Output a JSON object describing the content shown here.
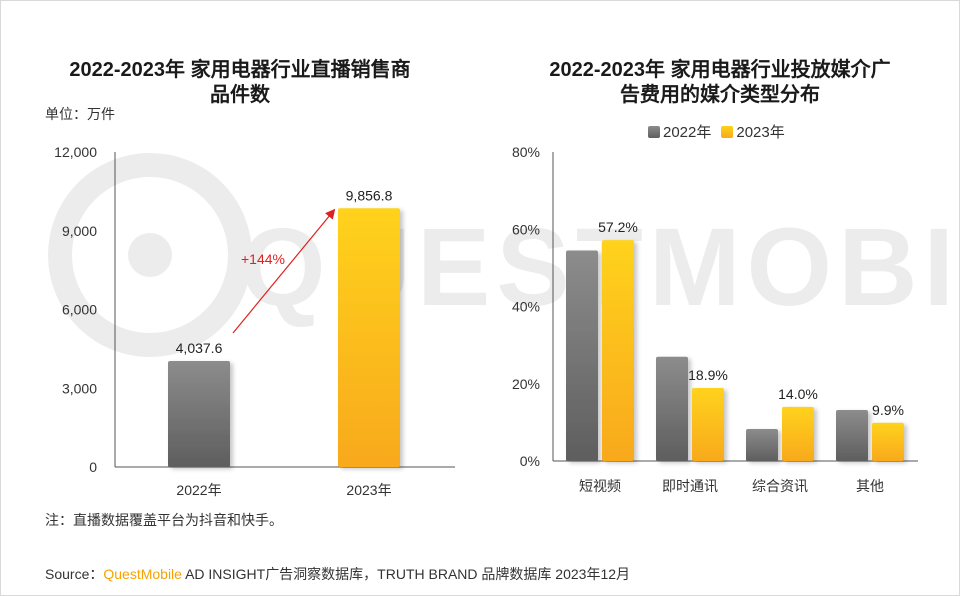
{
  "watermark": "QUESTMOBILE",
  "left_chart": {
    "title_line1": "2022-2023年 家用电器行业直播销售商",
    "title_line2": "品件数",
    "unit": "单位：万件",
    "note": "注：直播数据覆盖平台为抖音和快手。",
    "growth_label": "+144%"
  },
  "right_chart": {
    "title_line1": "2022-2023年 家用电器行业投放媒介广",
    "title_line2": "告费用的媒介类型分布"
  },
  "legend": {
    "series_2022": "2022年",
    "series_2023": "2023年"
  },
  "source": {
    "prefix": "Source：",
    "brand": "QuestMobile",
    "text": " AD INSIGHT广告洞察数据库，TRUTH BRAND 品牌数据库 2023年12月"
  },
  "colors": {
    "gray_top": "#8c8c8c",
    "gray_bottom": "#5e5e5e",
    "gold_top": "#ffd21a",
    "gold_bottom": "#f8a91c",
    "arrow": "#e0201e",
    "brand": "#f5a300"
  },
  "chart_data": [
    {
      "type": "bar",
      "title": "2022-2023年 家用电器行业直播销售商品件数",
      "ylabel": "单位：万件",
      "categories": [
        "2022年",
        "2023年"
      ],
      "values": [
        4037.6,
        9856.8
      ],
      "value_labels": [
        "4,037.6",
        "9,856.8"
      ],
      "ylim": [
        0,
        12000
      ],
      "yticks": [
        0,
        3000,
        6000,
        9000,
        12000
      ],
      "ytick_labels": [
        "0",
        "3,000",
        "6,000",
        "9,000",
        "12,000"
      ],
      "annotation": "+144%",
      "grid": false
    },
    {
      "type": "bar",
      "title": "2022-2023年 家用电器行业投放媒介广告费用的媒介类型分布",
      "categories": [
        "短视频",
        "即时通讯",
        "综合资讯",
        "其他"
      ],
      "series": [
        {
          "name": "2022年",
          "values": [
            54.5,
            27.0,
            8.3,
            13.2
          ],
          "labels": [
            "",
            "",
            "",
            ""
          ]
        },
        {
          "name": "2023年",
          "values": [
            57.2,
            18.9,
            14.0,
            9.9
          ],
          "labels": [
            "57.2%",
            "18.9%",
            "14.0%",
            "9.9%"
          ]
        }
      ],
      "ylim": [
        0,
        80
      ],
      "yticks": [
        0,
        20,
        40,
        60,
        80
      ],
      "ytick_labels": [
        "0%",
        "20%",
        "40%",
        "60%",
        "80%"
      ],
      "legend": "top",
      "grid": false
    }
  ]
}
